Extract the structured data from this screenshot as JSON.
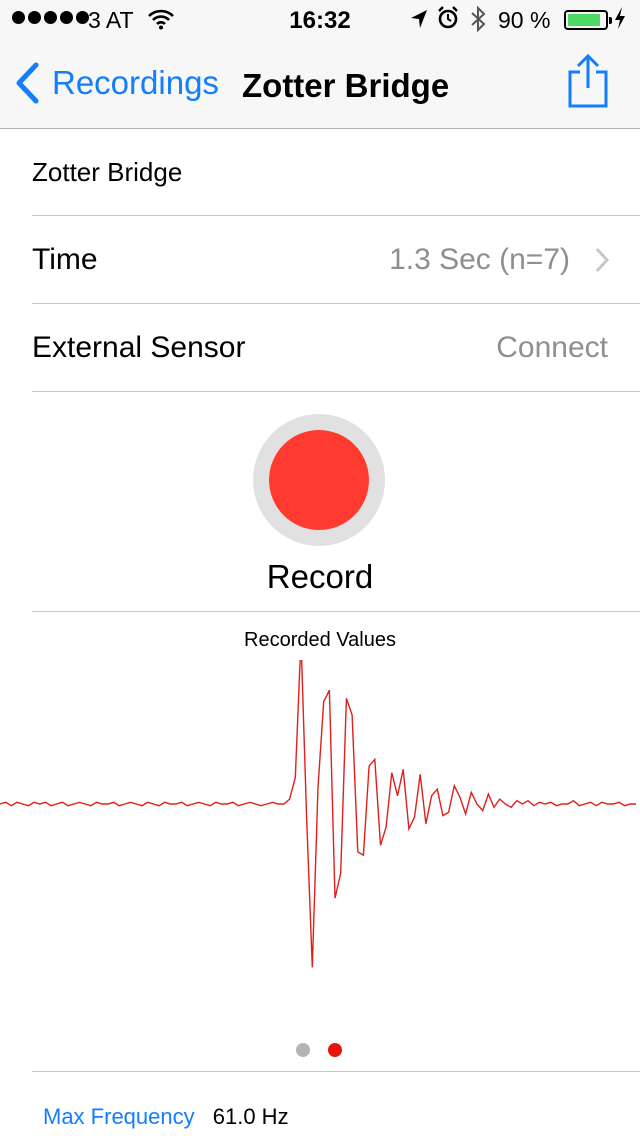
{
  "status_bar": {
    "carrier": "3 AT",
    "time": "16:32",
    "battery_percent": "90 %",
    "battery_level": 0.9,
    "icons": [
      "signal-dots",
      "wifi-icon",
      "location-arrow-icon",
      "alarm-icon",
      "bluetooth-icon",
      "battery-icon",
      "charging-bolt-icon"
    ]
  },
  "nav": {
    "back_label": "Recordings",
    "title": "Zotter Bridge",
    "share_icon": "share-icon"
  },
  "rows": {
    "name": "Zotter Bridge",
    "time_label": "Time",
    "time_value": "1.3 Sec (n=7)",
    "sensor_label": "External Sensor",
    "sensor_value": "Connect"
  },
  "record": {
    "label": "Record",
    "color": "#ff3b30"
  },
  "chart_data": {
    "type": "line",
    "title": "Recorded Values",
    "color": "#e0201b",
    "ylim": [
      -1,
      1
    ],
    "values": [
      0.0,
      0.01,
      -0.01,
      0.01,
      0.0,
      -0.01,
      0.01,
      0.0,
      0.01,
      -0.01,
      0.0,
      0.01,
      -0.01,
      0.0,
      0.01,
      0.0,
      -0.01,
      0.01,
      0.0,
      0.0,
      0.01,
      -0.01,
      0.0,
      0.01,
      0.0,
      -0.01,
      0.01,
      0.0,
      -0.01,
      0.01,
      0.0,
      0.0,
      0.01,
      -0.01,
      0.0,
      0.01,
      0.0,
      -0.01,
      0.01,
      0.0,
      0.0,
      0.01,
      -0.01,
      0.0,
      0.01,
      0.0,
      -0.01,
      0.0,
      0.01,
      0.0,
      0.0,
      0.03,
      0.16,
      1.0,
      -0.08,
      -0.99,
      0.1,
      0.62,
      0.69,
      -0.57,
      -0.42,
      0.64,
      0.54,
      -0.29,
      -0.31,
      0.23,
      0.27,
      -0.25,
      -0.14,
      0.19,
      0.05,
      0.21,
      -0.15,
      -0.08,
      0.18,
      -0.12,
      0.05,
      0.09,
      -0.07,
      -0.05,
      0.11,
      0.04,
      -0.06,
      0.07,
      0.0,
      -0.04,
      0.06,
      -0.02,
      0.03,
      0.0,
      -0.02,
      0.02,
      0.0,
      0.02,
      -0.01,
      0.01,
      0.0,
      0.01,
      -0.01,
      0.0,
      0.0,
      0.02,
      -0.01,
      0.0,
      0.01,
      -0.01,
      0.01,
      0.0,
      0.0,
      0.01,
      -0.01,
      0.0,
      0.0
    ]
  },
  "pager": {
    "pages": 2,
    "active": 1,
    "inactive_color": "#b4b4b4",
    "active_color": "#e8150f"
  },
  "footer": {
    "label": "Max Frequency",
    "value": "61.0 Hz"
  }
}
